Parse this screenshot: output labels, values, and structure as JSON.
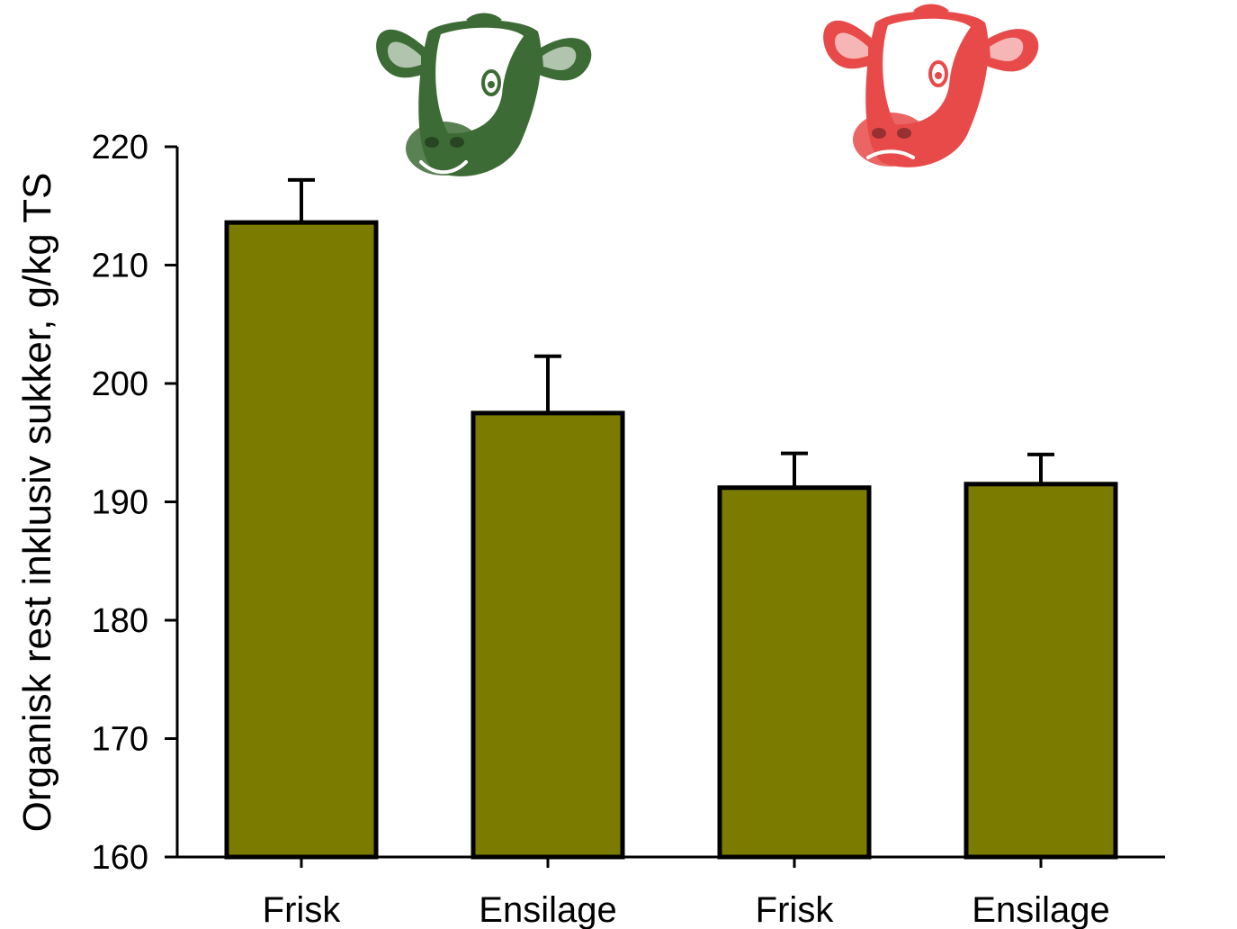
{
  "chart_data": {
    "type": "bar",
    "categories": [
      "Frisk",
      "Ensilage",
      "Frisk",
      "Ensilage"
    ],
    "values": [
      213.6,
      197.5,
      191.2,
      191.5
    ],
    "errors": [
      3.6,
      4.8,
      2.9,
      2.5
    ],
    "title": "",
    "xlabel": "",
    "ylabel": "Organisk rest inklusiv sukker, g/kg TS",
    "ylim": [
      160,
      220
    ],
    "yticks": [
      160,
      170,
      180,
      190,
      200,
      210,
      220
    ],
    "grid": false,
    "legend": "none",
    "bar_color": "#7b7b00",
    "group_icons": [
      {
        "name": "cow-head-icon",
        "color": "#3d6b35",
        "expression": "happy",
        "groups": [
          0,
          1
        ]
      },
      {
        "name": "cow-head-icon",
        "color": "#e84a4a",
        "expression": "sad",
        "groups": [
          2,
          3
        ]
      }
    ]
  }
}
